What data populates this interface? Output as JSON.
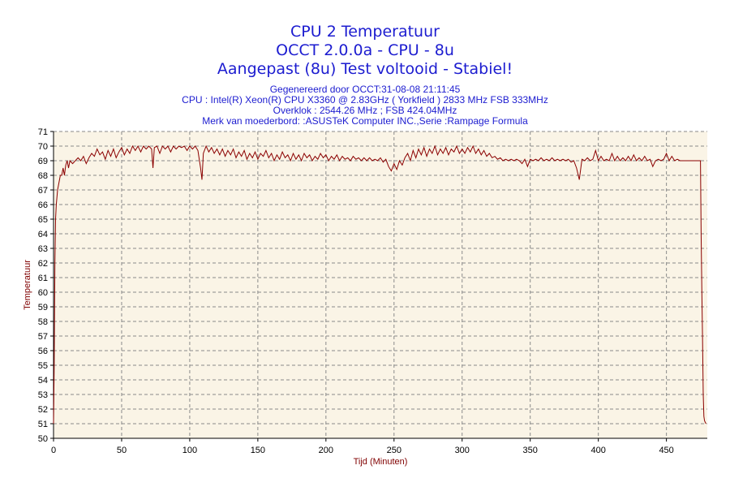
{
  "chart_data": {
    "type": "line",
    "title": "CPU 2 Temperatuur",
    "title_lines": [
      "CPU 2 Temperatuur",
      "OCCT 2.0.0a - CPU - 8u",
      "Aangepast (8u) Test voltooid - Stabiel!"
    ],
    "subtitle_lines": [
      "Gegenereerd door OCCT:31-08-08 21:11:45",
      "CPU : Intel(R) Xeon(R) CPU X3360 @ 2.83GHz ( Yorkfield ) 2833 MHz FSB 333MHz",
      "Overklok : 2544.26 MHz ; FSB 424.04MHz",
      "Merk van moederbord: :ASUSTeK Computer INC.,Serie :Rampage Formula"
    ],
    "xlabel": "Tijd (Minuten)",
    "ylabel": "Temperatuur",
    "xlim": [
      0,
      480
    ],
    "ylim": [
      50,
      71
    ],
    "xticks": [
      0,
      50,
      100,
      150,
      200,
      250,
      300,
      350,
      400,
      450
    ],
    "yticks": [
      50,
      51,
      52,
      53,
      54,
      55,
      56,
      57,
      58,
      59,
      60,
      61,
      62,
      63,
      64,
      65,
      66,
      67,
      68,
      69,
      70,
      71
    ],
    "grid": true,
    "legend": "none",
    "colors": {
      "plot_background": "#faf4e6",
      "line": "#8b0000",
      "title": "#1c1cd0",
      "axis_label": "#800000",
      "grid": "#8a8a8a"
    },
    "series": [
      {
        "values": [
          [
            0,
            51
          ],
          [
            0.5,
            55
          ],
          [
            1,
            62
          ],
          [
            1.5,
            65
          ],
          [
            2,
            66
          ],
          [
            3,
            67
          ],
          [
            4,
            67.5
          ],
          [
            5,
            68
          ],
          [
            6,
            68
          ],
          [
            7,
            68.5
          ],
          [
            8,
            68
          ],
          [
            9,
            68.7
          ],
          [
            10,
            69
          ],
          [
            11,
            68.5
          ],
          [
            12,
            69
          ],
          [
            14,
            68.8
          ],
          [
            16,
            69
          ],
          [
            18,
            69.2
          ],
          [
            20,
            69
          ],
          [
            22,
            69.3
          ],
          [
            24,
            68.8
          ],
          [
            26,
            69.2
          ],
          [
            28,
            69.5
          ],
          [
            30,
            69.3
          ],
          [
            32,
            69.8
          ],
          [
            34,
            69.4
          ],
          [
            36,
            69.6
          ],
          [
            38,
            69.1
          ],
          [
            40,
            69.7
          ],
          [
            42,
            69.3
          ],
          [
            44,
            69.8
          ],
          [
            46,
            69.2
          ],
          [
            48,
            69.6
          ],
          [
            50,
            69.9
          ],
          [
            52,
            69.4
          ],
          [
            54,
            69.8
          ],
          [
            56,
            69.5
          ],
          [
            58,
            70
          ],
          [
            60,
            69.7
          ],
          [
            62,
            70
          ],
          [
            64,
            69.6
          ],
          [
            66,
            70
          ],
          [
            68,
            69.8
          ],
          [
            70,
            70
          ],
          [
            72,
            69.8
          ],
          [
            73,
            68.5
          ],
          [
            74,
            69.9
          ],
          [
            76,
            70
          ],
          [
            78,
            69.5
          ],
          [
            80,
            70
          ],
          [
            82,
            69.8
          ],
          [
            84,
            70
          ],
          [
            86,
            69.6
          ],
          [
            88,
            70
          ],
          [
            90,
            69.8
          ],
          [
            92,
            70
          ],
          [
            94,
            69.9
          ],
          [
            96,
            70
          ],
          [
            98,
            69.7
          ],
          [
            100,
            70
          ],
          [
            102,
            69.8
          ],
          [
            104,
            70
          ],
          [
            106,
            69.7
          ],
          [
            108,
            68.5
          ],
          [
            109,
            67.7
          ],
          [
            110,
            69.5
          ],
          [
            112,
            70
          ],
          [
            114,
            69.6
          ],
          [
            116,
            69.9
          ],
          [
            118,
            69.5
          ],
          [
            120,
            69.8
          ],
          [
            122,
            69.4
          ],
          [
            124,
            69.8
          ],
          [
            126,
            69.3
          ],
          [
            128,
            69.7
          ],
          [
            130,
            69.4
          ],
          [
            132,
            69.8
          ],
          [
            134,
            69.2
          ],
          [
            136,
            69.6
          ],
          [
            138,
            69.3
          ],
          [
            140,
            69.7
          ],
          [
            142,
            69.1
          ],
          [
            144,
            69.5
          ],
          [
            146,
            69.2
          ],
          [
            148,
            69.6
          ],
          [
            150,
            69.1
          ],
          [
            152,
            69.5
          ],
          [
            154,
            69.3
          ],
          [
            156,
            69.7
          ],
          [
            158,
            69.2
          ],
          [
            160,
            69.5
          ],
          [
            162,
            69
          ],
          [
            164,
            69.4
          ],
          [
            166,
            69.1
          ],
          [
            168,
            69.6
          ],
          [
            170,
            69.2
          ],
          [
            172,
            69.4
          ],
          [
            174,
            69
          ],
          [
            176,
            69.5
          ],
          [
            178,
            69.1
          ],
          [
            180,
            69.4
          ],
          [
            182,
            69
          ],
          [
            184,
            69.5
          ],
          [
            186,
            69.2
          ],
          [
            188,
            69.4
          ],
          [
            190,
            69
          ],
          [
            192,
            69.3
          ],
          [
            194,
            69.1
          ],
          [
            196,
            69.5
          ],
          [
            198,
            69.2
          ],
          [
            200,
            69.4
          ],
          [
            202,
            69
          ],
          [
            204,
            69.3
          ],
          [
            206,
            69.1
          ],
          [
            208,
            69.4
          ],
          [
            210,
            69
          ],
          [
            212,
            69.3
          ],
          [
            214,
            69.1
          ],
          [
            216,
            69.2
          ],
          [
            218,
            69
          ],
          [
            220,
            69.3
          ],
          [
            222,
            69.1
          ],
          [
            224,
            69.2
          ],
          [
            226,
            69
          ],
          [
            228,
            69.2
          ],
          [
            230,
            69
          ],
          [
            232,
            69.2
          ],
          [
            234,
            69
          ],
          [
            236,
            69.1
          ],
          [
            238,
            69
          ],
          [
            240,
            69.2
          ],
          [
            242,
            68.9
          ],
          [
            244,
            69.1
          ],
          [
            246,
            68.6
          ],
          [
            248,
            68.3
          ],
          [
            250,
            68.8
          ],
          [
            252,
            68.4
          ],
          [
            254,
            69
          ],
          [
            256,
            68.7
          ],
          [
            258,
            69.2
          ],
          [
            260,
            69.5
          ],
          [
            262,
            69
          ],
          [
            264,
            69.7
          ],
          [
            266,
            69.2
          ],
          [
            268,
            69.8
          ],
          [
            270,
            69.4
          ],
          [
            272,
            69.9
          ],
          [
            274,
            69.3
          ],
          [
            276,
            69.8
          ],
          [
            278,
            69.5
          ],
          [
            280,
            70
          ],
          [
            282,
            69.4
          ],
          [
            284,
            69.8
          ],
          [
            286,
            69.5
          ],
          [
            288,
            69.9
          ],
          [
            290,
            69.4
          ],
          [
            292,
            69.8
          ],
          [
            294,
            69.6
          ],
          [
            296,
            70
          ],
          [
            298,
            69.5
          ],
          [
            300,
            69.8
          ],
          [
            302,
            69.5
          ],
          [
            304,
            69.9
          ],
          [
            306,
            69.6
          ],
          [
            308,
            70
          ],
          [
            310,
            69.5
          ],
          [
            312,
            69.8
          ],
          [
            314,
            69.4
          ],
          [
            316,
            69.7
          ],
          [
            318,
            69.3
          ],
          [
            320,
            69.5
          ],
          [
            322,
            69.2
          ],
          [
            324,
            69.3
          ],
          [
            326,
            69.1
          ],
          [
            328,
            69.2
          ],
          [
            330,
            69
          ],
          [
            332,
            69.1
          ],
          [
            334,
            69
          ],
          [
            336,
            69.1
          ],
          [
            338,
            69
          ],
          [
            340,
            69.1
          ],
          [
            342,
            69
          ],
          [
            344,
            68.8
          ],
          [
            346,
            69.1
          ],
          [
            348,
            68.6
          ],
          [
            350,
            69.1
          ],
          [
            352,
            69
          ],
          [
            354,
            69.1
          ],
          [
            356,
            69
          ],
          [
            358,
            69.2
          ],
          [
            360,
            69
          ],
          [
            362,
            69.1
          ],
          [
            364,
            69
          ],
          [
            366,
            69.2
          ],
          [
            368,
            69
          ],
          [
            370,
            69.1
          ],
          [
            372,
            69
          ],
          [
            374,
            69.1
          ],
          [
            376,
            69
          ],
          [
            378,
            69.1
          ],
          [
            380,
            68.9
          ],
          [
            382,
            69
          ],
          [
            384,
            68.5
          ],
          [
            386,
            67.7
          ],
          [
            388,
            69.1
          ],
          [
            390,
            69
          ],
          [
            392,
            69.2
          ],
          [
            394,
            69
          ],
          [
            396,
            69.1
          ],
          [
            398,
            69.7
          ],
          [
            400,
            69
          ],
          [
            402,
            69.3
          ],
          [
            404,
            69
          ],
          [
            406,
            69.1
          ],
          [
            408,
            69
          ],
          [
            410,
            69.5
          ],
          [
            412,
            69
          ],
          [
            414,
            69.3
          ],
          [
            416,
            69
          ],
          [
            418,
            69.2
          ],
          [
            420,
            69
          ],
          [
            422,
            69.3
          ],
          [
            424,
            69
          ],
          [
            426,
            69.4
          ],
          [
            428,
            69
          ],
          [
            430,
            69.2
          ],
          [
            432,
            69
          ],
          [
            434,
            69.3
          ],
          [
            436,
            69
          ],
          [
            438,
            69.1
          ],
          [
            440,
            68.6
          ],
          [
            442,
            69
          ],
          [
            444,
            69.1
          ],
          [
            446,
            69
          ],
          [
            448,
            69.1
          ],
          [
            450,
            69.5
          ],
          [
            452,
            69
          ],
          [
            454,
            69.3
          ],
          [
            456,
            69
          ],
          [
            458,
            69.1
          ],
          [
            460,
            69
          ],
          [
            462,
            69
          ],
          [
            464,
            69
          ],
          [
            466,
            69
          ],
          [
            468,
            69
          ],
          [
            470,
            69
          ],
          [
            472,
            69
          ],
          [
            474,
            69
          ],
          [
            475,
            69
          ],
          [
            475.5,
            64
          ],
          [
            476,
            60
          ],
          [
            476.5,
            57
          ],
          [
            477,
            53
          ],
          [
            477.5,
            51.5
          ],
          [
            478,
            51.2
          ],
          [
            479,
            51
          ]
        ]
      }
    ]
  }
}
